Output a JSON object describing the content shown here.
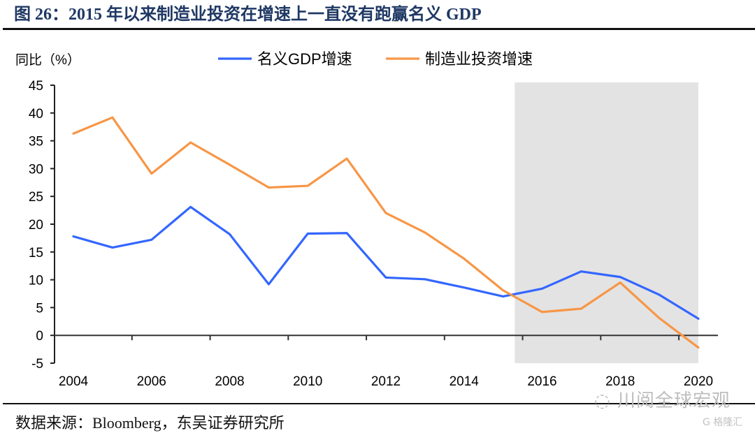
{
  "header": {
    "title": "图 26：2015 年以来制造业投资在增速上一直没有跑赢名义 GDP"
  },
  "footer": {
    "source": "数据来源：Bloomberg，东吴证券研究所",
    "watermark": "川阅全球宏观",
    "watermark2": "格隆汇"
  },
  "chart_data": {
    "type": "line",
    "title": "2015 年以来制造业投资在增速上一直没有跑赢名义 GDP",
    "ylabel": "同比（%）",
    "xlabel": "",
    "x": [
      2004,
      2005,
      2006,
      2007,
      2008,
      2009,
      2010,
      2011,
      2012,
      2013,
      2014,
      2015,
      2016,
      2017,
      2018,
      2019,
      2020
    ],
    "x_tick_labels": [
      "2004",
      "2006",
      "2008",
      "2010",
      "2012",
      "2014",
      "2016",
      "2018",
      "2020"
    ],
    "y_ticks": [
      -5,
      0,
      5,
      10,
      15,
      20,
      25,
      30,
      35,
      40,
      45
    ],
    "ylim": [
      -5,
      45
    ],
    "xlim": [
      2004,
      2020
    ],
    "grid": false,
    "legend_position": "top",
    "shaded_region": {
      "x_start": 2015.3,
      "x_end": 2020.0,
      "color": "#e3e3e3"
    },
    "series": [
      {
        "name": "名义GDP增速",
        "color": "#3366ff",
        "values": [
          17.8,
          15.8,
          17.2,
          23.1,
          18.2,
          9.2,
          18.3,
          18.4,
          10.4,
          10.1,
          8.6,
          7.0,
          8.4,
          11.5,
          10.5,
          7.3,
          3.0
        ]
      },
      {
        "name": "制造业投资增速",
        "color": "#f79646",
        "values": [
          36.3,
          39.2,
          29.1,
          34.7,
          30.7,
          26.6,
          26.9,
          31.8,
          22.0,
          18.5,
          13.8,
          8.1,
          4.2,
          4.8,
          9.5,
          3.1,
          -2.2
        ]
      }
    ]
  }
}
